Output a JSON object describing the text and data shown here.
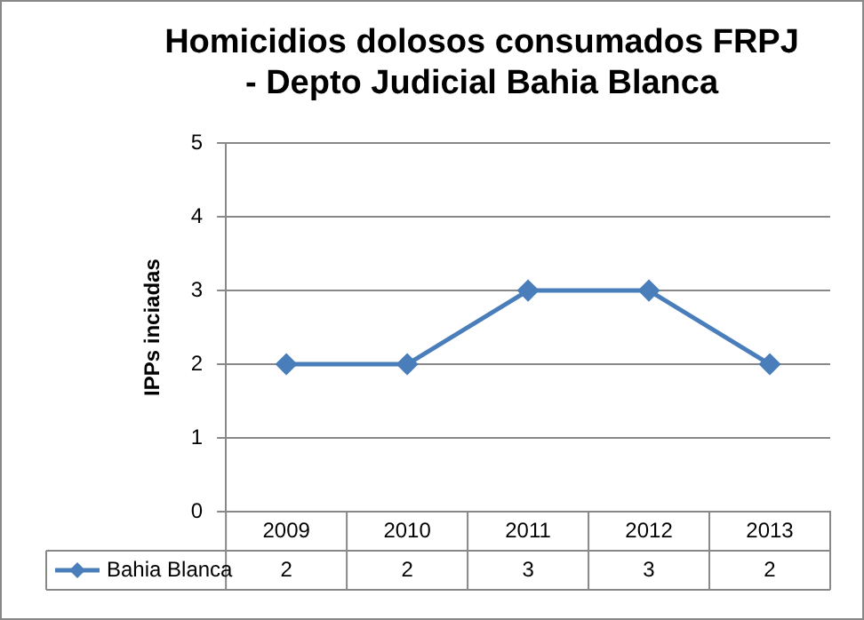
{
  "chart_data": {
    "type": "line",
    "title": "Homicidios dolosos consumados FRPJ - Depto Judicial Bahia Blanca",
    "ylabel": "IPPs inciadas",
    "categories": [
      "2009",
      "2010",
      "2011",
      "2012",
      "2013"
    ],
    "series": [
      {
        "name": "Bahia Blanca",
        "color": "#4a7ebb",
        "values": [
          2,
          2,
          3,
          3,
          2
        ]
      }
    ],
    "ylim": [
      0,
      5
    ],
    "yticks": [
      0,
      1,
      2,
      3,
      4,
      5
    ],
    "grid": "y",
    "legend": "bottom",
    "marker": "diamond",
    "data_labels": true
  }
}
